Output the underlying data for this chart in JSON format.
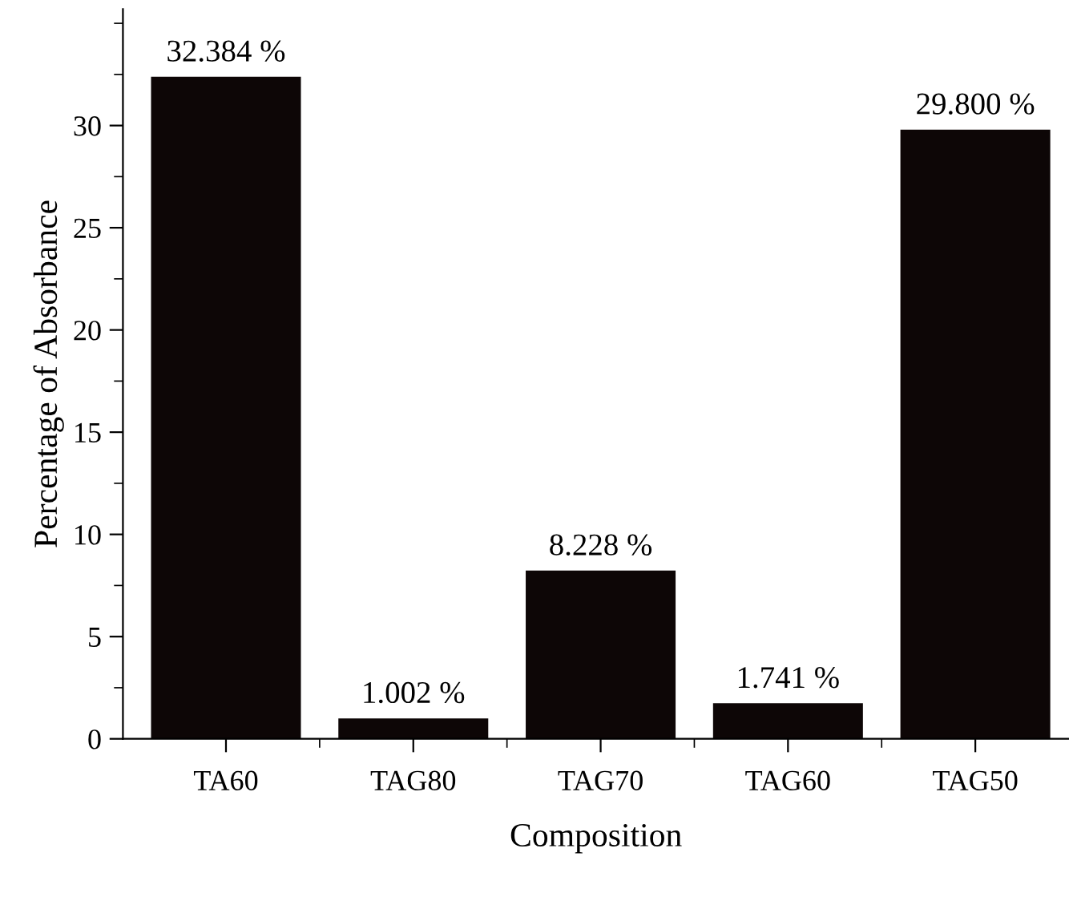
{
  "chart_data": {
    "type": "bar",
    "xlabel": "Composition",
    "ylabel": "Percentage of Absorbance",
    "categories": [
      "TA60",
      "TAG80",
      "TAG70",
      "TAG60",
      "TAG50"
    ],
    "values": [
      32.384,
      1.002,
      8.228,
      1.741,
      29.8
    ],
    "value_labels": [
      "32.384 %",
      "1.002 %",
      "8.228 %",
      "1.741 %",
      "29.800 %"
    ],
    "color": "#0d0606",
    "ylim": [
      0,
      35.7
    ],
    "yticks": [
      0,
      5,
      10,
      15,
      20,
      25,
      30
    ],
    "grid": false
  }
}
